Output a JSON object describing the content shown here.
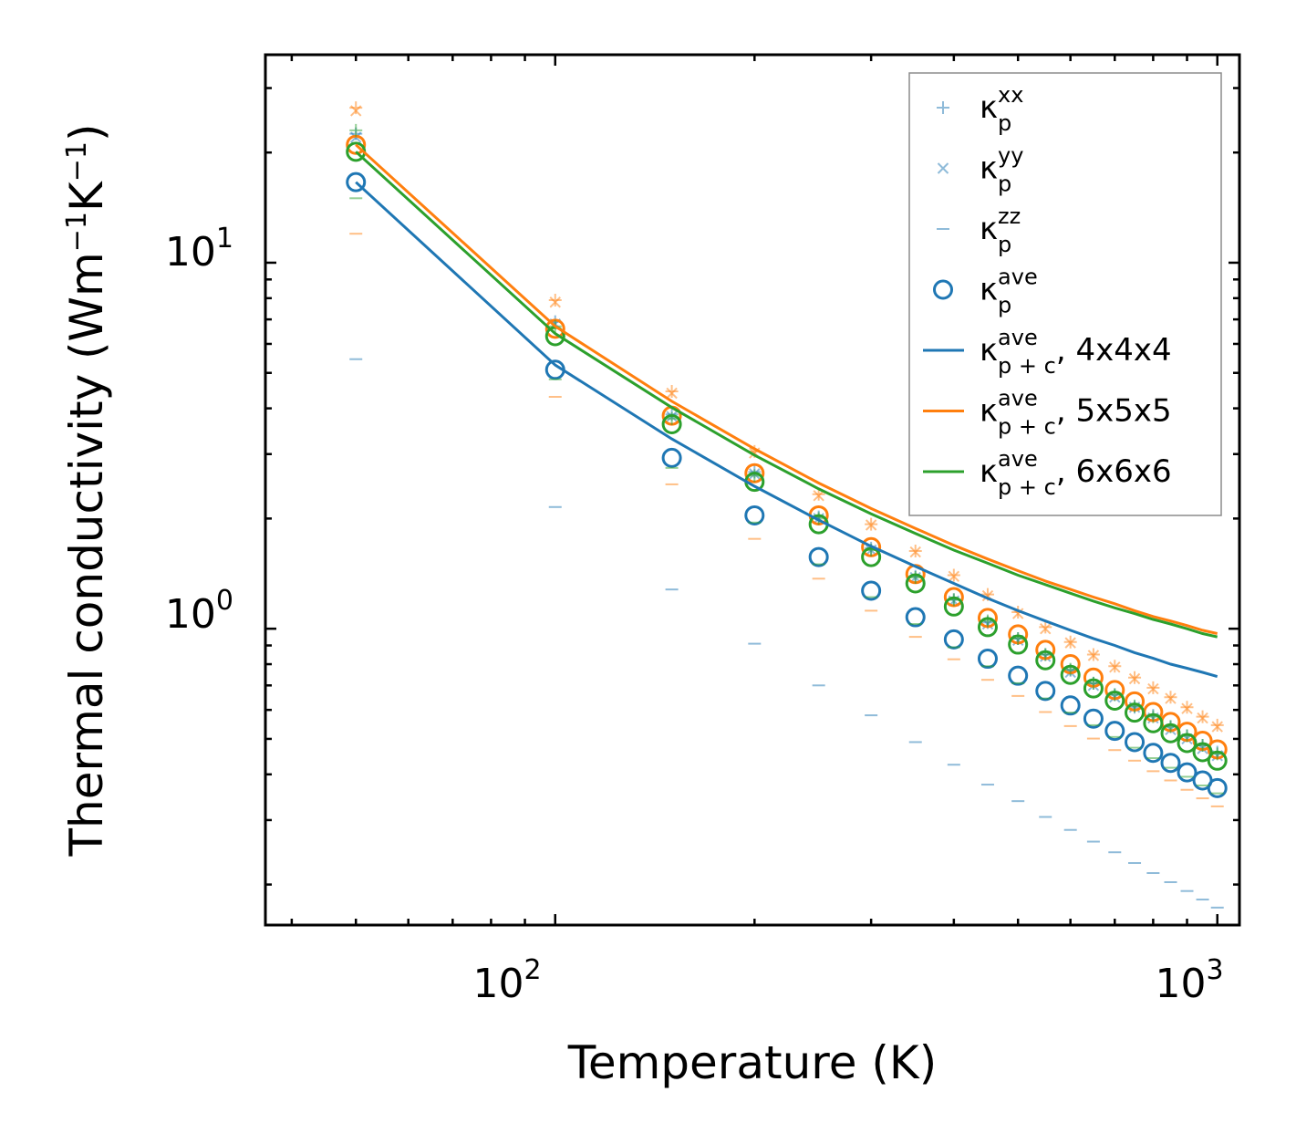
{
  "chart_data": {
    "type": "scatter",
    "title": "",
    "xlabel": "Temperature (K)",
    "ylabel": "Thermal conductivity (Wm",
    "ylabel_sup1": "−1",
    "ylabel_mid": "K",
    "ylabel_sup2": "−1",
    "ylabel_end": ")",
    "xscale": "log",
    "yscale": "log",
    "xlim": [
      36.5,
      1080
    ],
    "ylim": [
      0.155,
      37
    ],
    "xticks": [
      {
        "base": "10",
        "exp": "2",
        "value": 100
      },
      {
        "base": "10",
        "exp": "3",
        "value": 1000
      }
    ],
    "yticks": [
      {
        "base": "10",
        "exp": "0",
        "value": 1
      },
      {
        "base": "10",
        "exp": "1",
        "value": 10
      }
    ],
    "legend_position": "top-right",
    "x": [
      50,
      100,
      150,
      200,
      250,
      300,
      350,
      400,
      450,
      500,
      550,
      600,
      650,
      700,
      750,
      800,
      850,
      900,
      950,
      1000
    ],
    "series": [
      {
        "key": "kxx_4",
        "legend": true,
        "name": "κ",
        "sub": "p",
        "sup": "xx",
        "marker": "plus",
        "color": "#1f77b4",
        "opacity": 0.5,
        "values": [
          22.5,
          6.9,
          3.85,
          2.68,
          2.02,
          1.66,
          1.39,
          1.2,
          1.04,
          0.94,
          0.85,
          0.77,
          0.71,
          0.66,
          0.61,
          0.58,
          0.54,
          0.51,
          0.48,
          0.46
        ]
      },
      {
        "key": "kyy_4",
        "legend": true,
        "name": "κ",
        "sub": "p",
        "sup": "yy",
        "marker": "x",
        "color": "#1f77b4",
        "opacity": 0.5,
        "values": [
          22.0,
          6.8,
          3.8,
          2.65,
          2.0,
          1.64,
          1.38,
          1.19,
          1.03,
          0.93,
          0.84,
          0.76,
          0.7,
          0.65,
          0.61,
          0.57,
          0.53,
          0.5,
          0.47,
          0.45
        ]
      },
      {
        "key": "kzz_4",
        "legend": true,
        "name": "κ",
        "sub": "p",
        "sup": "zz",
        "marker": "dash",
        "color": "#1f77b4",
        "opacity": 0.5,
        "values": [
          5.45,
          2.15,
          1.28,
          0.91,
          0.7,
          0.58,
          0.49,
          0.425,
          0.375,
          0.338,
          0.306,
          0.282,
          0.262,
          0.245,
          0.229,
          0.215,
          0.203,
          0.192,
          0.182,
          0.173
        ]
      },
      {
        "key": "kave_4",
        "legend": true,
        "name": "κ",
        "sub": "p",
        "sup": "ave",
        "marker": "circle",
        "color": "#1f77b4",
        "opacity": 1,
        "values": [
          16.6,
          5.1,
          2.93,
          2.04,
          1.57,
          1.27,
          1.075,
          0.935,
          0.828,
          0.744,
          0.676,
          0.617,
          0.568,
          0.526,
          0.49,
          0.458,
          0.43,
          0.405,
          0.385,
          0.367
        ]
      },
      {
        "key": "kxx_5",
        "legend": false,
        "marker": "plus",
        "color": "#ff7f0e",
        "opacity": 0.5,
        "values": [
          26.5,
          7.9,
          4.45,
          3.05,
          2.33,
          1.93,
          1.63,
          1.4,
          1.24,
          1.11,
          1.01,
          0.92,
          0.85,
          0.79,
          0.735,
          0.69,
          0.65,
          0.61,
          0.575,
          0.545
        ]
      },
      {
        "key": "kyy_5",
        "legend": false,
        "marker": "x",
        "color": "#ff7f0e",
        "opacity": 0.5,
        "values": [
          26.0,
          7.8,
          4.4,
          3.02,
          2.31,
          1.92,
          1.62,
          1.39,
          1.23,
          1.1,
          1.0,
          0.915,
          0.845,
          0.785,
          0.73,
          0.685,
          0.645,
          0.605,
          0.57,
          0.54
        ]
      },
      {
        "key": "kzz_5",
        "legend": false,
        "marker": "dash",
        "color": "#ff7f0e",
        "opacity": 0.5,
        "values": [
          12.0,
          4.3,
          2.48,
          1.76,
          1.37,
          1.12,
          0.95,
          0.825,
          0.725,
          0.655,
          0.592,
          0.542,
          0.501,
          0.466,
          0.436,
          0.408,
          0.385,
          0.363,
          0.344,
          0.327
        ]
      },
      {
        "key": "kave_5",
        "legend": false,
        "marker": "circle",
        "color": "#ff7f0e",
        "opacity": 1,
        "values": [
          21.0,
          6.6,
          3.82,
          2.66,
          2.04,
          1.67,
          1.41,
          1.22,
          1.07,
          0.965,
          0.875,
          0.8,
          0.735,
          0.68,
          0.633,
          0.592,
          0.556,
          0.523,
          0.494,
          0.468
        ]
      },
      {
        "key": "kxx_6",
        "legend": false,
        "marker": "plus",
        "color": "#2ca02c",
        "opacity": 0.5,
        "values": [
          23.0,
          6.7,
          3.75,
          2.62,
          2.0,
          1.64,
          1.38,
          1.2,
          1.05,
          0.94,
          0.85,
          0.775,
          0.71,
          0.66,
          0.615,
          0.575,
          0.54,
          0.51,
          0.48,
          0.455
        ]
      },
      {
        "key": "kzz_6",
        "legend": false,
        "marker": "dash",
        "color": "#2ca02c",
        "opacity": 0.5,
        "values": [
          15.0,
          4.8,
          2.75,
          1.95,
          1.5,
          1.22,
          1.03,
          0.89,
          0.79,
          0.71,
          0.645,
          0.59,
          0.545,
          0.506,
          0.473,
          0.443,
          0.417,
          0.394,
          0.373,
          0.355
        ]
      },
      {
        "key": "kave_6",
        "legend": false,
        "marker": "circle",
        "color": "#2ca02c",
        "opacity": 1,
        "values": [
          20.1,
          6.3,
          3.62,
          2.52,
          1.93,
          1.57,
          1.33,
          1.15,
          1.01,
          0.905,
          0.82,
          0.748,
          0.687,
          0.636,
          0.59,
          0.552,
          0.518,
          0.487,
          0.46,
          0.436
        ]
      },
      {
        "key": "kpc_4",
        "legend": true,
        "name": "κ",
        "sub": "p + c",
        "sup": "ave",
        "suffix": ", 4x4x4",
        "marker": "line",
        "color": "#1f77b4",
        "opacity": 1,
        "values": [
          16.6,
          5.25,
          3.3,
          2.45,
          1.98,
          1.68,
          1.48,
          1.33,
          1.21,
          1.12,
          1.05,
          0.99,
          0.94,
          0.9,
          0.86,
          0.83,
          0.8,
          0.78,
          0.76,
          0.74
        ]
      },
      {
        "key": "kpc_5",
        "legend": true,
        "name": "κ",
        "sub": "p + c",
        "sup": "ave",
        "suffix": ", 5x5x5",
        "marker": "line",
        "color": "#ff7f0e",
        "opacity": 1,
        "values": [
          21.0,
          6.7,
          4.18,
          3.1,
          2.5,
          2.13,
          1.88,
          1.69,
          1.55,
          1.44,
          1.35,
          1.28,
          1.22,
          1.17,
          1.12,
          1.08,
          1.05,
          1.02,
          0.99,
          0.97
        ]
      },
      {
        "key": "kpc_6",
        "legend": true,
        "name": "κ",
        "sub": "p + c",
        "sup": "ave",
        "suffix": ", 6x6x6",
        "marker": "line",
        "color": "#2ca02c",
        "opacity": 1,
        "values": [
          20.1,
          6.4,
          4.02,
          2.98,
          2.41,
          2.06,
          1.82,
          1.64,
          1.51,
          1.4,
          1.32,
          1.25,
          1.19,
          1.14,
          1.1,
          1.06,
          1.03,
          1.0,
          0.97,
          0.95
        ]
      }
    ]
  }
}
